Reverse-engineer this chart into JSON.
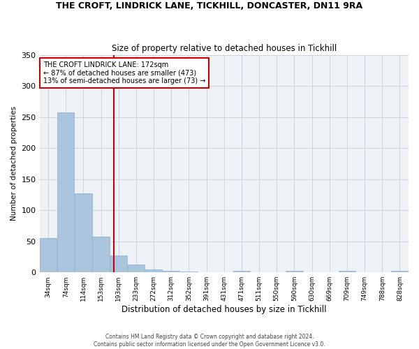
{
  "title": "THE CROFT, LINDRICK LANE, TICKHILL, DONCASTER, DN11 9RA",
  "subtitle": "Size of property relative to detached houses in Tickhill",
  "xlabel": "Distribution of detached houses by size in Tickhill",
  "ylabel": "Number of detached properties",
  "annotation_line1": "THE CROFT LINDRICK LANE: 172sqm",
  "annotation_line2": "← 87% of detached houses are smaller (473)",
  "annotation_line3": "13% of semi-detached houses are larger (73) →",
  "bar_labels": [
    "34sqm",
    "74sqm",
    "114sqm",
    "153sqm",
    "193sqm",
    "233sqm",
    "272sqm",
    "312sqm",
    "352sqm",
    "391sqm",
    "431sqm",
    "471sqm",
    "511sqm",
    "550sqm",
    "590sqm",
    "630sqm",
    "669sqm",
    "709sqm",
    "749sqm",
    "788sqm",
    "828sqm"
  ],
  "bar_values": [
    55,
    257,
    127,
    58,
    27,
    13,
    5,
    2,
    1,
    0,
    0,
    3,
    0,
    0,
    2,
    0,
    0,
    2,
    0,
    0,
    2
  ],
  "bar_color": "#aac4dd",
  "bar_edge_color": "#8ab0c8",
  "vline_x": 3.75,
  "vline_color": "#cc0000",
  "annotation_box_color": "#cc0000",
  "background_color": "#eef2f7",
  "grid_color": "#c8d4e0",
  "ylim": [
    0,
    350
  ],
  "yticks": [
    0,
    50,
    100,
    150,
    200,
    250,
    300,
    350
  ],
  "footer1": "Contains HM Land Registry data © Crown copyright and database right 2024.",
  "footer2": "Contains public sector information licensed under the Open Government Licence v3.0."
}
